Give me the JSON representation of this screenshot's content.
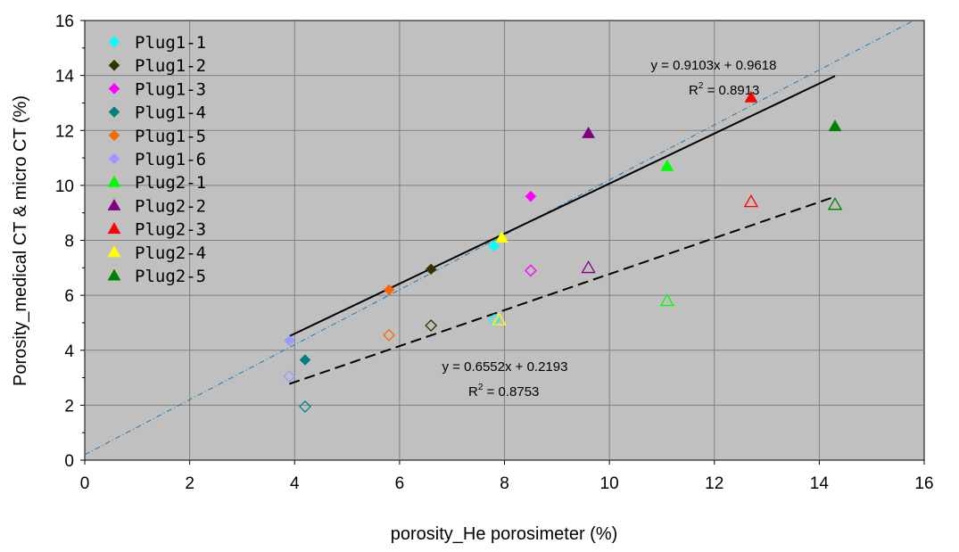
{
  "chart_data": {
    "type": "scatter",
    "xlabel": "porosity_He porosimeter (%)",
    "ylabel": "Porosity_medical CT & micro CT (%)",
    "xlim": [
      0,
      16
    ],
    "ylim": [
      0,
      16
    ],
    "x_ticks": [
      "0",
      "2",
      "4",
      "6",
      "8",
      "10",
      "12",
      "14",
      "16"
    ],
    "y_ticks": [
      "0",
      "2",
      "4",
      "6",
      "8",
      "10",
      "12",
      "14",
      "16"
    ],
    "grid": true,
    "plot_background": "#c0c0c0",
    "legend_position": "top-left",
    "series": [
      {
        "name": "Plug1-1",
        "marker": "diamond",
        "color": "#00ffff",
        "medical_ct": [
          [
            7.8,
            7.8
          ]
        ],
        "micro_ct": [
          [
            7.8,
            5.1
          ]
        ]
      },
      {
        "name": "Plug1-2",
        "marker": "diamond",
        "color": "#333300",
        "medical_ct": [
          [
            6.6,
            6.95
          ]
        ],
        "micro_ct": [
          [
            6.6,
            4.9
          ]
        ]
      },
      {
        "name": "Plug1-3",
        "marker": "diamond",
        "color": "#ff00ff",
        "medical_ct": [
          [
            8.5,
            9.6
          ]
        ],
        "micro_ct": [
          [
            8.5,
            6.9
          ]
        ]
      },
      {
        "name": "Plug1-4",
        "marker": "diamond",
        "color": "#008080",
        "medical_ct": [
          [
            4.2,
            3.65
          ]
        ],
        "micro_ct": [
          [
            4.2,
            1.95
          ]
        ]
      },
      {
        "name": "Plug1-5",
        "marker": "diamond",
        "color": "#ff6600",
        "medical_ct": [
          [
            5.8,
            6.2
          ]
        ],
        "micro_ct": [
          [
            5.8,
            4.55
          ]
        ]
      },
      {
        "name": "Plug1-6",
        "marker": "diamond",
        "color": "#9999ff",
        "medical_ct": [
          [
            3.9,
            4.35
          ]
        ],
        "micro_ct": [
          [
            3.9,
            3.05
          ]
        ]
      },
      {
        "name": "Plug2-1",
        "marker": "triangle",
        "color": "#00ff00",
        "medical_ct": [
          [
            11.1,
            10.7
          ]
        ],
        "micro_ct": [
          [
            11.1,
            5.8
          ]
        ]
      },
      {
        "name": "Plug2-2",
        "marker": "triangle",
        "color": "#800080",
        "medical_ct": [
          [
            9.6,
            11.9
          ]
        ],
        "micro_ct": [
          [
            9.6,
            7.0
          ]
        ]
      },
      {
        "name": "Plug2-3",
        "marker": "triangle",
        "color": "#ff0000",
        "medical_ct": [
          [
            12.7,
            13.2
          ]
        ],
        "micro_ct": [
          [
            12.7,
            9.4
          ]
        ]
      },
      {
        "name": "Plug2-4",
        "marker": "triangle",
        "color": "#ffff00",
        "medical_ct": [
          [
            7.95,
            8.1
          ]
        ],
        "micro_ct": [
          [
            7.9,
            5.1
          ]
        ]
      },
      {
        "name": "Plug2-5",
        "marker": "triangle",
        "color": "#008000",
        "medical_ct": [
          [
            14.3,
            12.15
          ]
        ],
        "micro_ct": [
          [
            14.3,
            9.3
          ]
        ]
      }
    ],
    "trendlines": [
      {
        "equation": "y = 0.9103x + 0.9618",
        "r2_value": " = 0.8913",
        "slope": 0.9103,
        "intercept": 0.9618,
        "x_range": [
          3.9,
          14.3
        ],
        "style": "solid",
        "color": "#000000"
      },
      {
        "equation": "y = 0.6552x + 0.2193",
        "r2_value": " = 0.8753",
        "slope": 0.6552,
        "intercept": 0.2193,
        "x_range": [
          3.9,
          14.3
        ],
        "style": "dashed",
        "color": "#000000"
      }
    ],
    "reference_line": {
      "slope": 1,
      "intercept": 0.2,
      "style": "dash-dot",
      "color": "#1f77b4"
    }
  }
}
